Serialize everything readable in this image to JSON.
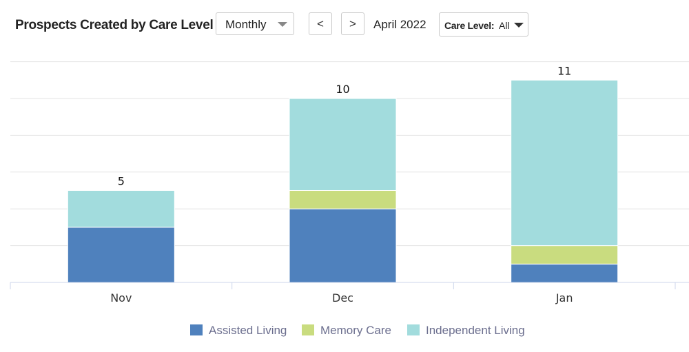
{
  "header": {
    "title": "Prospects Created by Care Level",
    "period_select": "Monthly",
    "prev_label": "<",
    "next_label": ">",
    "period": "April 2022",
    "care_level_label": "Care Level:",
    "care_level_value": "All"
  },
  "chart_data": {
    "type": "bar",
    "stacked": true,
    "categories": [
      "Nov",
      "Dec",
      "Jan"
    ],
    "series": [
      {
        "name": "Assisted Living",
        "color": "#4f81bd",
        "values": [
          3,
          4,
          1
        ]
      },
      {
        "name": "Memory Care",
        "color": "#c9dc7f",
        "values": [
          0,
          1,
          1
        ]
      },
      {
        "name": "Independent Living",
        "color": "#a2dcdd",
        "values": [
          2,
          5,
          9
        ]
      }
    ],
    "totals": [
      5,
      10,
      11
    ],
    "ylim": [
      0,
      12
    ],
    "grid": true,
    "legend": "bottom"
  }
}
